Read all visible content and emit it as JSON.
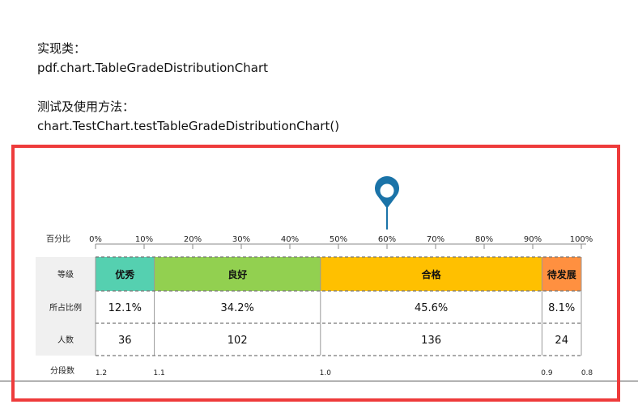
{
  "intro": {
    "class_label": "实现类：",
    "class_name": "pdf.chart.TableGradeDistributionChart",
    "usage_label": "测试及使用方法：",
    "usage_method": "chart.TestChart.testTableGradeDistributionChart()"
  },
  "chart_data": {
    "type": "table",
    "axis_label": "百分比",
    "percent_ticks": [
      "0%",
      "10%",
      "20%",
      "30%",
      "40%",
      "50%",
      "60%",
      "70%",
      "80%",
      "90%",
      "100%"
    ],
    "marker_percent": 60,
    "row_labels": {
      "grade": "等级",
      "ratio": "所占比例",
      "count": "人数",
      "breakpoints": "分段数"
    },
    "grades": [
      {
        "name": "优秀",
        "ratio": "12.1%",
        "percent": 12.1,
        "count": "36",
        "color": "#55d0b0"
      },
      {
        "name": "良好",
        "ratio": "34.2%",
        "percent": 34.2,
        "count": "102",
        "color": "#92d050"
      },
      {
        "name": "合格",
        "ratio": "45.6%",
        "percent": 45.6,
        "count": "136",
        "color": "#ffc000"
      },
      {
        "name": "待发展",
        "ratio": "8.1%",
        "percent": 8.1,
        "count": "24",
        "color": "#ff9040"
      }
    ],
    "breakpoints": [
      "1.2",
      "1.1",
      "1.0",
      "0.9",
      "0.8"
    ],
    "colors": {
      "marker": "#1a73a8",
      "label_cell": "#f0f0f0",
      "grid": "#999999"
    }
  }
}
